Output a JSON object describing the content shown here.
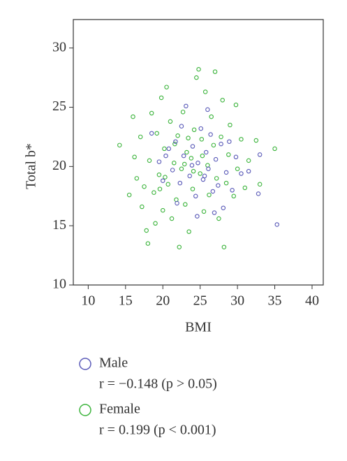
{
  "chart_data": {
    "type": "scatter",
    "xlabel": "BMI",
    "ylabel": "Total b*",
    "xlim": [
      8,
      41.5
    ],
    "ylim": [
      10,
      32.4
    ],
    "xticks": [
      10,
      15,
      20,
      25,
      30,
      35,
      40
    ],
    "yticks": [
      10,
      15,
      20,
      25,
      30
    ],
    "series": [
      {
        "name": "Female",
        "stat": "r = 0.199 (p < 0.001)",
        "color": "#3cb43c",
        "x": [
          14.2,
          15.5,
          16,
          16.2,
          16.5,
          17,
          17.2,
          17.5,
          17.8,
          18,
          18.2,
          18.5,
          18.8,
          19,
          19.2,
          19.5,
          19.8,
          20,
          20.2,
          20.5,
          20.7,
          21,
          21.2,
          21.5,
          21.8,
          22,
          22.2,
          22.5,
          22.7,
          23,
          23.2,
          23.5,
          23.8,
          24,
          24.2,
          24.5,
          24.8,
          25,
          25.2,
          25.5,
          25.7,
          26,
          26.2,
          26.5,
          26.8,
          27,
          27.2,
          27.5,
          27.8,
          28,
          28.2,
          28.5,
          28.8,
          29,
          29.5,
          29.8,
          30,
          30.5,
          31,
          31.5,
          32.5,
          33,
          35,
          20.3,
          21.6,
          22.9,
          24.1,
          25.3,
          19.6,
          23.4
        ],
        "values": [
          21.8,
          17.6,
          24.2,
          20.8,
          19,
          22.5,
          16.6,
          18.3,
          14.6,
          13.5,
          20.5,
          24.5,
          17.8,
          15.2,
          22.8,
          19.3,
          25.8,
          16.3,
          21.5,
          26.7,
          18.5,
          23.8,
          15.6,
          20.3,
          17.2,
          22.6,
          13.2,
          19.8,
          24.6,
          16.8,
          21.2,
          14.5,
          20.7,
          18.1,
          23.1,
          27.5,
          28.2,
          19.4,
          22.3,
          16.2,
          26.3,
          20.1,
          17.6,
          24.2,
          21.8,
          28,
          19,
          15.6,
          22.5,
          25.6,
          13.2,
          18.6,
          21,
          23.5,
          17.5,
          25.2,
          19.8,
          22.3,
          18.2,
          20.5,
          22.2,
          18.5,
          21.5,
          19.1,
          21.9,
          20.2,
          19.6,
          20.9,
          18.1,
          22.4
        ]
      },
      {
        "name": "Male",
        "stat": "r = −0.148 (p > 0.05)",
        "color": "#5a5ab8",
        "x": [
          18.5,
          19.5,
          20,
          20.8,
          21.3,
          21.7,
          22.3,
          22.8,
          23.1,
          23.6,
          24,
          24.4,
          24.7,
          25.1,
          25.4,
          25.8,
          26.1,
          26.4,
          26.7,
          27.1,
          27.4,
          27.8,
          28.1,
          28.5,
          28.9,
          29.3,
          29.8,
          30.5,
          31.5,
          32.8,
          33,
          35.3,
          26,
          22.5,
          24.6,
          26.9,
          21.9,
          23.9,
          25.6,
          20.4
        ],
        "values": [
          22.8,
          20.4,
          18.8,
          21.5,
          19.7,
          22.1,
          18.6,
          20.9,
          25.1,
          19.2,
          21.7,
          17.5,
          20.3,
          23.2,
          18.9,
          21.2,
          19.8,
          22.7,
          17.9,
          20.6,
          18.4,
          21.9,
          16.5,
          19.5,
          22.1,
          18,
          20.8,
          19.4,
          19.6,
          17.7,
          21,
          15.1,
          24.8,
          23.4,
          15.8,
          16.1,
          16.9,
          20.1,
          19.2,
          20.9
        ]
      }
    ]
  }
}
